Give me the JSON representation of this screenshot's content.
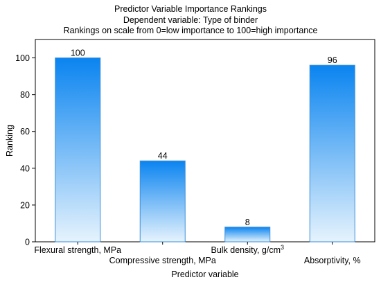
{
  "chart_data": {
    "type": "bar",
    "title": "Predictor Variable Importance Rankings",
    "subtitle_lines": [
      "Dependent variable: Type of binder",
      "Rankings on scale from 0=low importance to 100=high importance"
    ],
    "xlabel": "Predictor variable",
    "ylabel": "Ranking",
    "ylim": [
      0,
      110
    ],
    "yticks": [
      0,
      20,
      40,
      60,
      80,
      100
    ],
    "categories": [
      "Flexural strength, MPa",
      "Compressive strength, MPa",
      "Bulk density, g/cm",
      "Absorptivity, %"
    ],
    "category_superscripts": [
      "",
      "",
      "3",
      ""
    ],
    "values": [
      100,
      44,
      8,
      96
    ],
    "data_labels": [
      "100",
      "44",
      "8",
      "96"
    ],
    "grid": false,
    "colors": {
      "bar_top": "#0a84f0",
      "bar_bottom": "#e6f3fd",
      "bar_stroke": "#3a8fd8"
    }
  }
}
